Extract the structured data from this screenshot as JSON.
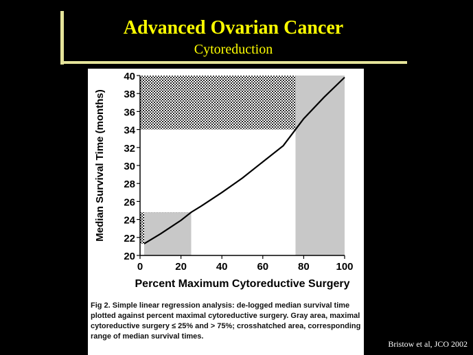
{
  "slide": {
    "title": "Advanced Ovarian Cancer",
    "subtitle": "Cytoreduction",
    "credit": "Bristow et al, JCO 2002",
    "caption": "Fig 2.   Simple linear regression analysis: de-logged median survival time plotted against percent maximal cytoreductive surgery. Gray area, maximal cytoreductive surgery ≤ 25% and > 75%; crosshatched area, corresponding range of median survival times.",
    "colors": {
      "background": "#000000",
      "title": "#ffff00",
      "bracket": "#e5e49a",
      "gray_area": "#c8c8c8"
    }
  },
  "chart_data": {
    "type": "line",
    "title": "",
    "xlabel": "Percent Maximum Cytoreductive Surgery",
    "ylabel": "Median Survival Time (months)",
    "xlim": [
      0,
      100
    ],
    "ylim": [
      20,
      40
    ],
    "xticks": [
      0,
      20,
      40,
      60,
      80,
      100
    ],
    "yticks": [
      20,
      22,
      24,
      26,
      28,
      30,
      32,
      34,
      36,
      38,
      40
    ],
    "series": [
      {
        "x": [
          2,
          10,
          20,
          25,
          30,
          40,
          50,
          60,
          70,
          76,
          80,
          90,
          100
        ],
        "y": [
          21.3,
          22.4,
          23.9,
          24.8,
          25.5,
          27.0,
          28.6,
          30.4,
          32.2,
          34.0,
          35.2,
          37.6,
          39.8
        ]
      }
    ],
    "gray_areas": [
      {
        "x_range": [
          2,
          25
        ],
        "y_top": 24.8
      },
      {
        "x_range": [
          76,
          100
        ],
        "y_top": 40
      }
    ],
    "crosshatched_areas": [
      {
        "y_range": [
          21.3,
          24.8
        ],
        "x_range": [
          0,
          25
        ]
      },
      {
        "y_range": [
          34,
          40
        ],
        "x_range": [
          0,
          100
        ]
      }
    ],
    "grid": false,
    "legend": "none"
  }
}
